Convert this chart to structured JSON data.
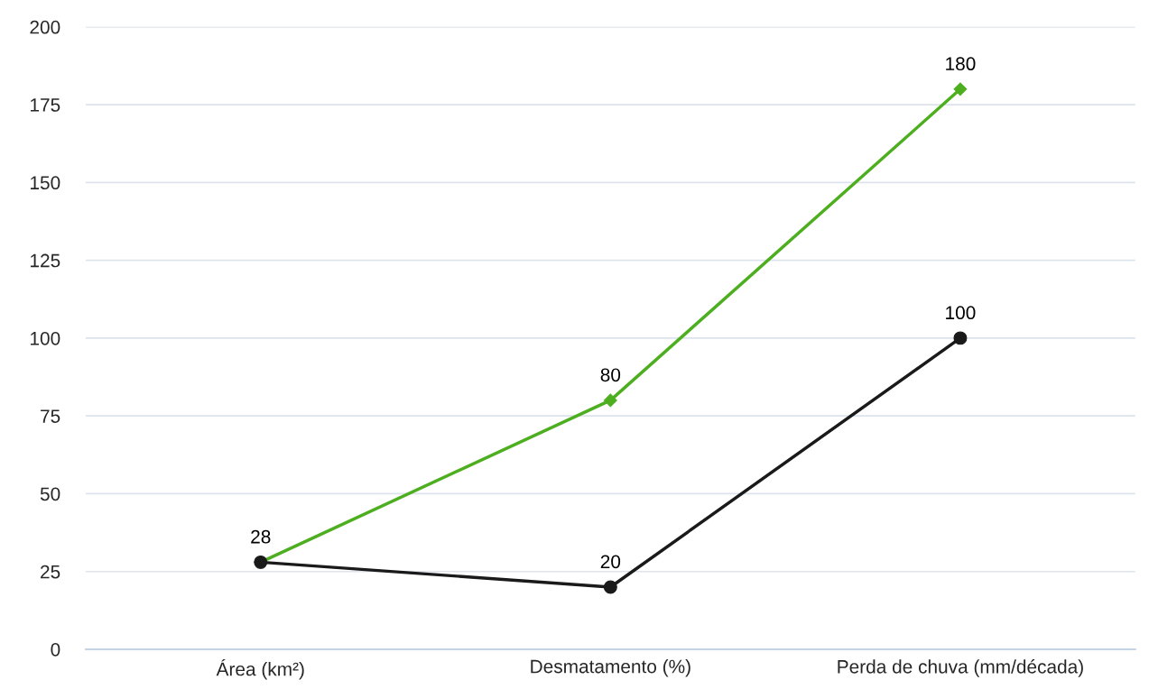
{
  "chart_data": {
    "type": "line",
    "categories": [
      "Área (km²)",
      "Desmatamento (%)",
      "Perda de chuva (mm/década)"
    ],
    "series": [
      {
        "color": "#4daf1f",
        "marker": "diamond",
        "values": [
          28,
          80,
          180
        ],
        "value_labels": [
          "28",
          "80",
          "180"
        ]
      },
      {
        "color": "#1a1a1a",
        "marker": "circle",
        "values": [
          28,
          20,
          100
        ],
        "value_labels": [
          null,
          "20",
          "100"
        ]
      }
    ],
    "ylim": [
      0,
      200
    ],
    "yticks": [
      0,
      25,
      50,
      75,
      100,
      125,
      150,
      175,
      200
    ],
    "grid": "y",
    "line_style": "solid",
    "legend": false
  }
}
